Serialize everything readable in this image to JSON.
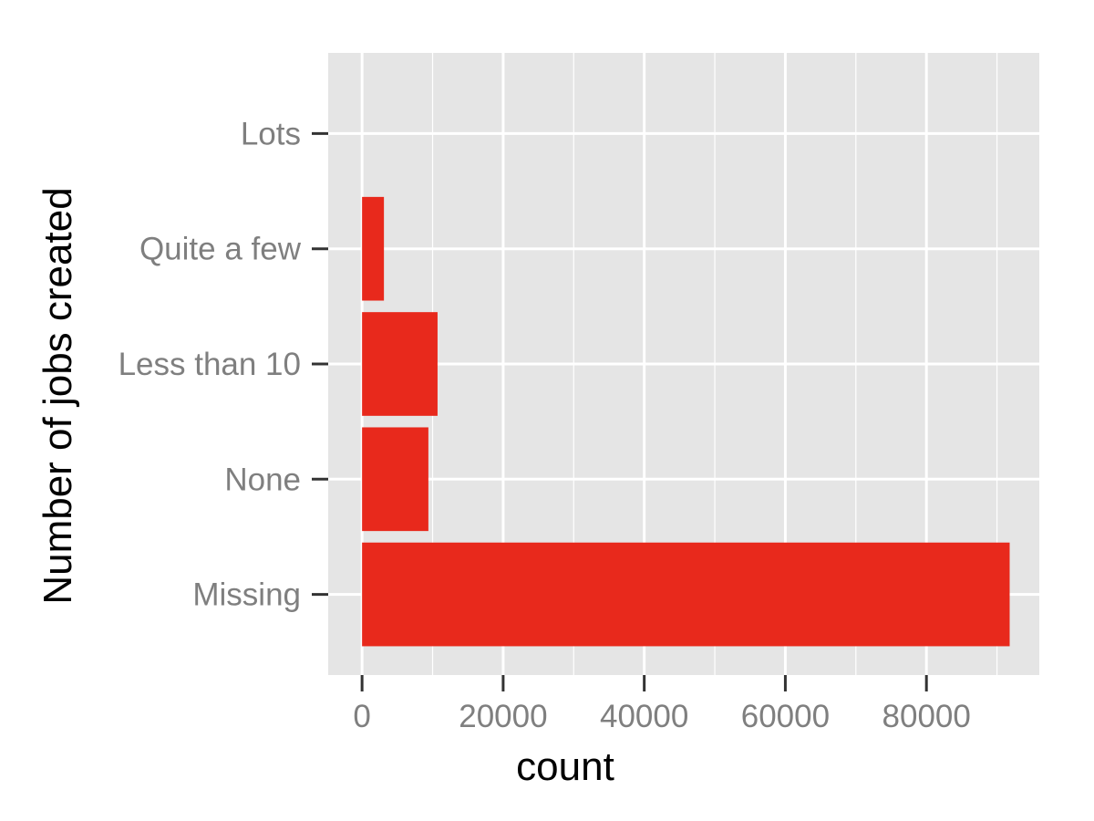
{
  "chart_data": {
    "type": "bar",
    "orientation": "horizontal",
    "categories": [
      "Missing",
      "None",
      "Less than 10",
      "Quite a few",
      "Lots"
    ],
    "values": [
      91800,
      9400,
      10700,
      3100,
      0
    ],
    "xlabel": "count",
    "ylabel": "Number of jobs created",
    "xlim": [
      -4800,
      96000
    ],
    "xticks": [
      0,
      20000,
      40000,
      60000,
      80000
    ],
    "xtick_labels": [
      "0",
      "20000",
      "40000",
      "60000",
      "80000"
    ],
    "grid": true,
    "bar_color": "#e8291c",
    "panel_color": "#e5e5e5",
    "grid_color": "#ffffff"
  }
}
